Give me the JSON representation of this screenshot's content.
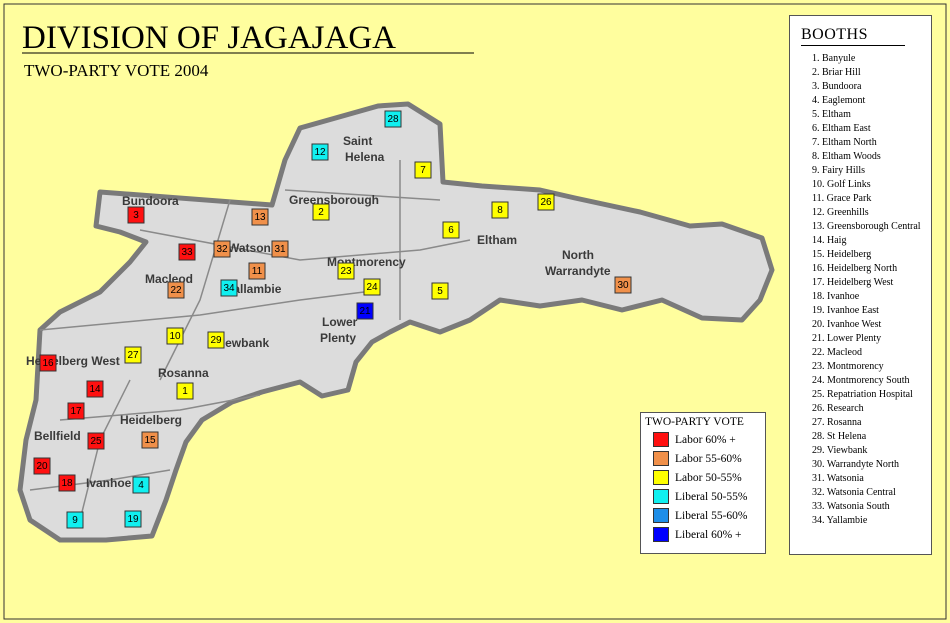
{
  "header": {
    "title": "DIVISION OF JAGAJAGA",
    "subtitle": "TWO-PARTY VOTE 2004"
  },
  "booths": {
    "title": "BOOTHS",
    "items": [
      "1. Banyule",
      "2. Briar Hill",
      "3. Bundoora",
      "4. Eaglemont",
      "5. Eltham",
      "6. Eltham East",
      "7. Eltham North",
      "8. Eltham Woods",
      "9. Fairy Hills",
      "10. Golf Links",
      "11. Grace Park",
      "12. Greenhills",
      "13. Greensborough Central",
      "14. Haig",
      "15. Heidelberg",
      "16. Heidelberg North",
      "17. Heidelberg West",
      "18. Ivanhoe",
      "19. Ivanhoe East",
      "20. Ivanhoe West",
      "21. Lower Plenty",
      "22. Macleod",
      "23. Montmorency",
      "24. Montmorency South",
      "25. Repatriation Hospital",
      "26. Research",
      "27. Rosanna",
      "28. St Helena",
      "29. Viewbank",
      "30. Warrandyte North",
      "31. Watsonia",
      "32. Watsonia Central",
      "33. Watsonia South",
      "34. Yallambie"
    ]
  },
  "legend": {
    "title": "TWO-PARTY VOTE",
    "items": [
      {
        "label": "Labor 60% +",
        "color": "#ff1010"
      },
      {
        "label": "Labor 55-60%",
        "color": "#f0904a"
      },
      {
        "label": "Labor 50-55%",
        "color": "#ffff00"
      },
      {
        "label": "Liberal 50-55%",
        "color": "#10f0f0"
      },
      {
        "label": "Liberal 55-60%",
        "color": "#1e8ee8"
      },
      {
        "label": "Liberal 60% +",
        "color": "#0000ff"
      }
    ]
  },
  "map": {
    "suburbs": [
      "Saint",
      "Helena",
      "Greensborough",
      "Bundoora",
      "Watsonia",
      "Yallambie",
      "Macleod",
      "Montmorency",
      "Lower",
      "Plenty",
      "Eltham",
      "North",
      "Warrandyte",
      "Viewbank",
      "Rosanna",
      "Heidelberg West",
      "Heidelberg",
      "Bellfield",
      "Ivanhoe"
    ],
    "booth_markers": [
      {
        "label": 3,
        "color": "#ff1010"
      },
      {
        "label": 33,
        "color": "#ff1010"
      },
      {
        "label": 32,
        "color": "#f0904a"
      },
      {
        "label": 13,
        "color": "#f0904a"
      },
      {
        "label": 31,
        "color": "#f0904a"
      },
      {
        "label": 2,
        "color": "#ffff00"
      },
      {
        "label": 12,
        "color": "#10f0f0"
      },
      {
        "label": 28,
        "color": "#10f0f0"
      },
      {
        "label": 7,
        "color": "#ffff00"
      },
      {
        "label": 8,
        "color": "#ffff00"
      },
      {
        "label": 26,
        "color": "#ffff00"
      },
      {
        "label": 6,
        "color": "#ffff00"
      },
      {
        "label": 11,
        "color": "#f0904a"
      },
      {
        "label": 34,
        "color": "#10f0f0"
      },
      {
        "label": 22,
        "color": "#f0904a"
      },
      {
        "label": 23,
        "color": "#ffff00"
      },
      {
        "label": 24,
        "color": "#ffff00"
      },
      {
        "label": 5,
        "color": "#ffff00"
      },
      {
        "label": 21,
        "color": "#0000ff"
      },
      {
        "label": 30,
        "color": "#f0904a"
      },
      {
        "label": 10,
        "color": "#ffff00"
      },
      {
        "label": 29,
        "color": "#ffff00"
      },
      {
        "label": 27,
        "color": "#ffff00"
      },
      {
        "label": 1,
        "color": "#ffff00"
      },
      {
        "label": 16,
        "color": "#ff1010"
      },
      {
        "label": 14,
        "color": "#ff1010"
      },
      {
        "label": 17,
        "color": "#ff1010"
      },
      {
        "label": 25,
        "color": "#ff1010"
      },
      {
        "label": 15,
        "color": "#f0904a"
      },
      {
        "label": 20,
        "color": "#ff1010"
      },
      {
        "label": 18,
        "color": "#ff1010"
      },
      {
        "label": 4,
        "color": "#10f0f0"
      },
      {
        "label": 9,
        "color": "#10f0f0"
      },
      {
        "label": 19,
        "color": "#10f0f0"
      }
    ]
  }
}
